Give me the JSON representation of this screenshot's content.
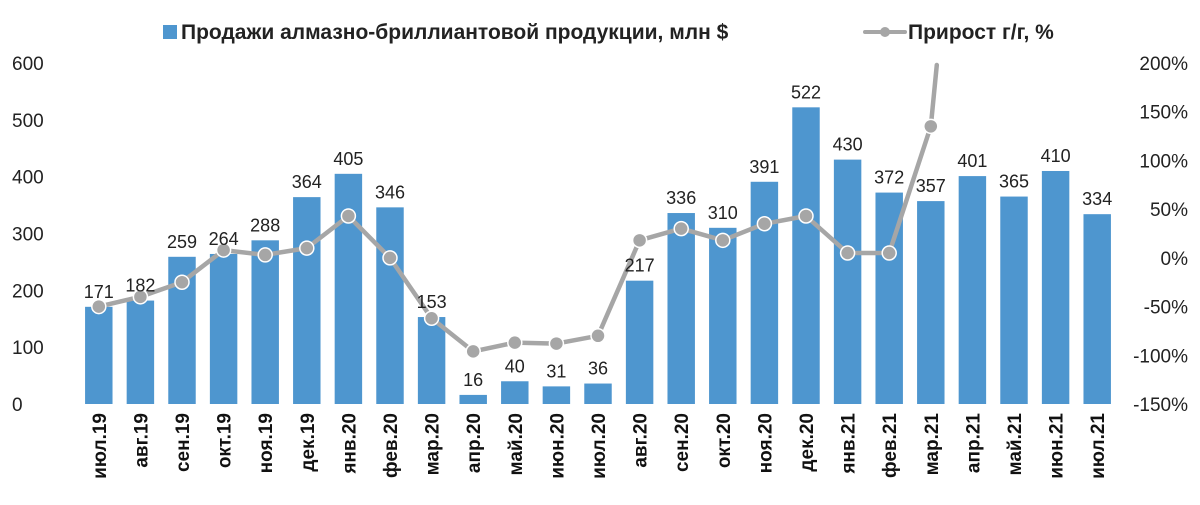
{
  "chart_data": {
    "type": "bar+line",
    "categories": [
      "июл.19",
      "авг.19",
      "сен.19",
      "окт.19",
      "ноя.19",
      "дек.19",
      "янв.20",
      "фев.20",
      "мар.20",
      "апр.20",
      "май.20",
      "июн.20",
      "июл.20",
      "авг.20",
      "сен.20",
      "окт.20",
      "ноя.20",
      "дек.20",
      "янв.21",
      "фев.21",
      "мар.21",
      "апр.21",
      "май.21",
      "июн.21",
      "июл.21"
    ],
    "series": [
      {
        "name": "Продажи алмазно-бриллиантовой продукции, млн $",
        "type": "bar",
        "axis": "left",
        "color": "#4e96cf",
        "values": [
          171,
          182,
          259,
          264,
          288,
          364,
          405,
          346,
          153,
          16,
          40,
          31,
          36,
          217,
          336,
          310,
          391,
          522,
          430,
          372,
          357,
          401,
          365,
          410,
          334
        ]
      },
      {
        "name": "Прирост г/г, %",
        "type": "line",
        "axis": "right",
        "color": "#a6a6a6",
        "values": [
          -50,
          -40,
          -25,
          8,
          3,
          10,
          43,
          0,
          -62,
          -96,
          -87,
          -88,
          -80,
          18,
          30,
          18,
          35,
          43,
          5,
          5,
          135,
          null,
          null,
          null,
          null
        ],
        "clipped_value_note_index": 20
      }
    ],
    "left_axis": {
      "min": 0,
      "max": 600,
      "ticks": [
        "0",
        "100",
        "200",
        "300",
        "400",
        "500",
        "600"
      ]
    },
    "right_axis": {
      "min": -150,
      "max": 200,
      "ticks": [
        "-150%",
        "-100%",
        "-50%",
        "0%",
        "50%",
        "100%",
        "150%",
        "200%"
      ]
    },
    "grid": false,
    "legend_position": "top"
  }
}
